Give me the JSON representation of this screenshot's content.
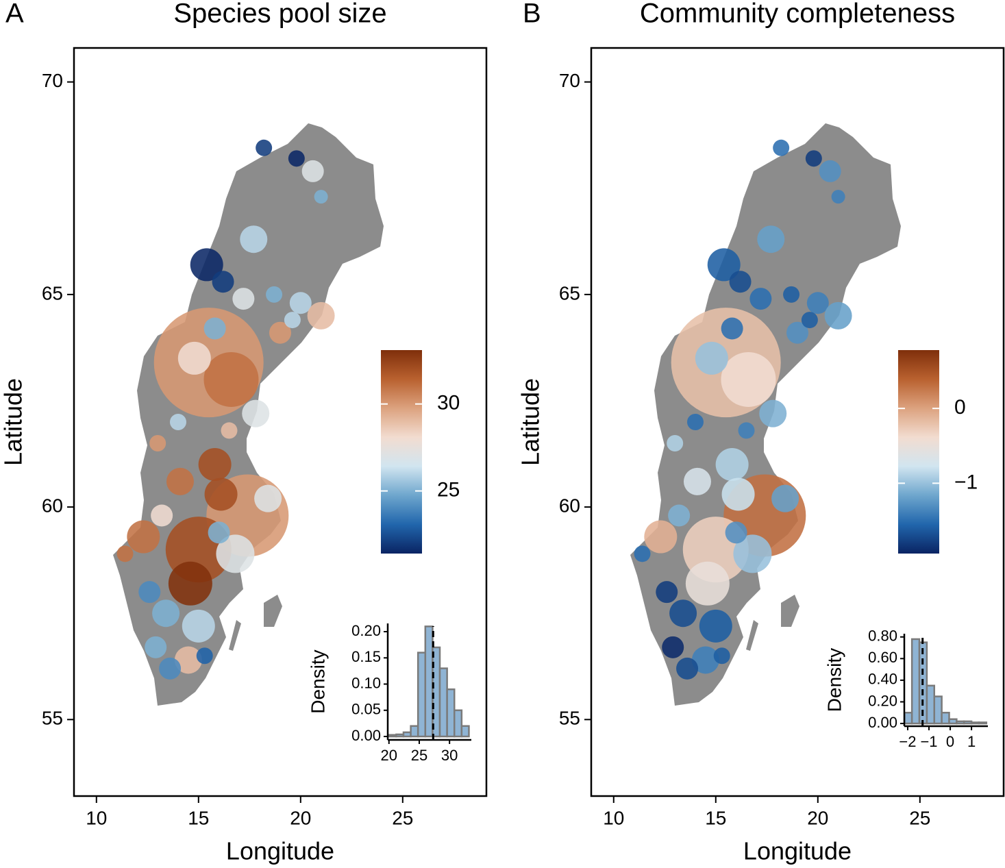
{
  "chart_data": [
    {
      "type": "scatter",
      "panel_label": "A",
      "title": "Species pool size",
      "x_label": "Longitude",
      "y_label": "Latitude",
      "xlim": [
        8.9,
        29.1
      ],
      "ylim": [
        53.2,
        70.8
      ],
      "xticks": [
        10,
        15,
        20,
        25
      ],
      "yticks": [
        55,
        60,
        65,
        70
      ],
      "map_color": "#8c8c8c",
      "x": [
        15.5,
        17.4,
        15.0,
        16.6,
        18.2,
        19.8,
        20.6,
        21.0,
        17.7,
        15.4,
        16.2,
        17.2,
        18.7,
        20.0,
        21.0,
        19.0,
        14.8,
        17.8,
        14.0,
        15.8,
        14.1,
        16.1,
        18.4,
        12.3,
        16.8,
        11.4,
        14.6,
        12.6,
        13.4,
        15.0,
        12.9,
        14.5,
        13.6,
        15.3,
        16.0,
        13.2,
        16.5,
        15.8,
        19.6,
        13.0
      ],
      "y": [
        63.4,
        59.8,
        59.0,
        63.0,
        68.45,
        68.2,
        67.9,
        67.3,
        66.3,
        65.7,
        65.3,
        64.9,
        65.0,
        64.8,
        64.5,
        64.1,
        63.5,
        62.2,
        62.0,
        61.0,
        60.6,
        60.3,
        60.2,
        59.3,
        58.9,
        58.9,
        58.2,
        58.0,
        57.5,
        57.2,
        56.7,
        56.4,
        56.2,
        56.5,
        59.4,
        59.8,
        61.8,
        64.2,
        64.4,
        61.5
      ],
      "sizes": [
        20,
        15,
        12,
        10,
        3,
        3,
        4,
        2.5,
        5,
        6,
        4,
        4,
        3,
        4,
        5,
        4,
        6,
        5,
        3,
        6,
        5,
        6,
        5,
        6,
        7,
        3,
        8,
        4,
        5,
        6,
        4,
        5,
        4,
        3,
        4,
        4,
        3,
        4,
        3,
        3
      ],
      "color_values": [
        30,
        30,
        32,
        31,
        22,
        21.5,
        27,
        25,
        26,
        21.5,
        22,
        27,
        25,
        26,
        29,
        30,
        28,
        27,
        26,
        32,
        31,
        32,
        27,
        31,
        27,
        31,
        33,
        24,
        25,
        26,
        25,
        29,
        24,
        23,
        25,
        28,
        29,
        25,
        26,
        30
      ],
      "colorbar": {
        "lim": [
          21.4,
          33.1
        ],
        "ticks": [
          25,
          30
        ],
        "colors": [
          "#0a2463",
          "#2166ac",
          "#6ea6cd",
          "#d1e5f0",
          "#f2dcd0",
          "#dca27f",
          "#b9612f",
          "#7f2f0b"
        ]
      },
      "inset": {
        "type": "histogram",
        "y_label": "Density",
        "color": "#8fb4d4",
        "bins": [
          20,
          21.2,
          22.4,
          23.6,
          24.8,
          26,
          27.2,
          28.4,
          29.6,
          30.8,
          32,
          33.2
        ],
        "counts": [
          0.003,
          0.004,
          0.008,
          0.02,
          0.16,
          0.21,
          0.17,
          0.13,
          0.09,
          0.05,
          0.02
        ],
        "xlim": [
          19.8,
          33.6
        ],
        "ylim": [
          -0.0065,
          0.2157
        ],
        "xticks": [
          20,
          25,
          30
        ],
        "yticks": [
          {
            "value": 0,
            "label": "0.00"
          },
          {
            "value": 0.05,
            "label": "0.05"
          },
          {
            "value": 0.1,
            "label": "0.10"
          },
          {
            "value": 0.15,
            "label": "0.15"
          },
          {
            "value": 0.2,
            "label": "0.20"
          }
        ],
        "mean_line": 27.3
      }
    },
    {
      "type": "scatter",
      "panel_label": "B",
      "title": "Community completeness",
      "x_label": "Longitude",
      "y_label": "Latitude",
      "xlim": [
        8.9,
        29.1
      ],
      "ylim": [
        53.2,
        70.8
      ],
      "xticks": [
        10,
        15,
        20,
        25
      ],
      "yticks": [
        55,
        60,
        65,
        70
      ],
      "map_color": "#8c8c8c",
      "x": [
        15.5,
        17.4,
        15.0,
        16.6,
        18.2,
        19.8,
        20.6,
        21.0,
        17.7,
        15.4,
        16.2,
        17.2,
        18.7,
        20.0,
        21.0,
        19.0,
        14.8,
        17.8,
        14.0,
        15.8,
        14.1,
        16.1,
        18.4,
        12.3,
        16.8,
        11.4,
        14.6,
        12.6,
        13.4,
        15.0,
        12.9,
        14.5,
        13.6,
        15.3,
        16.0,
        13.2,
        16.5,
        15.8,
        19.6,
        13.0
      ],
      "y": [
        63.4,
        59.8,
        59.0,
        63.0,
        68.45,
        68.2,
        67.9,
        67.3,
        66.3,
        65.7,
        65.3,
        64.9,
        65.0,
        64.8,
        64.5,
        64.1,
        63.5,
        62.2,
        62.0,
        61.0,
        60.6,
        60.3,
        60.2,
        59.3,
        58.9,
        58.9,
        58.2,
        58.0,
        57.5,
        57.2,
        56.7,
        56.4,
        56.2,
        56.5,
        59.4,
        59.8,
        61.8,
        64.2,
        64.4,
        61.5
      ],
      "sizes": [
        20,
        15,
        12,
        10,
        3,
        3,
        4,
        2.5,
        5,
        6,
        4,
        4,
        3,
        4,
        5,
        4,
        6,
        5,
        3,
        6,
        5,
        6,
        5,
        6,
        7,
        3,
        8,
        4,
        5,
        6,
        4,
        5,
        4,
        3,
        4,
        4,
        3,
        4,
        3,
        3
      ],
      "color_values": [
        -0.2,
        0.3,
        -0.3,
        -0.4,
        -1.5,
        -1.8,
        -1.3,
        -1.4,
        -1.2,
        -1.6,
        -1.7,
        -1.5,
        -1.6,
        -1.4,
        -1.2,
        -1.3,
        -1.0,
        -1.1,
        -1.5,
        -0.9,
        -0.7,
        -0.8,
        -1.2,
        -0.1,
        -1.0,
        -1.5,
        -0.5,
        -1.8,
        -1.7,
        -1.6,
        -1.9,
        -1.4,
        -1.7,
        -1.6,
        -1.3,
        -1.1,
        -1.4,
        -1.5,
        -1.6,
        -0.9
      ],
      "colorbar": {
        "lim": [
          -1.94,
          0.78
        ],
        "ticks": [
          {
            "value": -1,
            "label": "−1"
          },
          0
        ],
        "colors": [
          "#0a2463",
          "#2166ac",
          "#6ea6cd",
          "#d1e5f0",
          "#f2dcd0",
          "#dca27f",
          "#b9612f",
          "#7f2f0b"
        ]
      },
      "inset": {
        "type": "histogram",
        "y_label": "Density",
        "color": "#8fb4d4",
        "bins": [
          -2.15,
          -1.8,
          -1.45,
          -1.1,
          -0.75,
          -0.4,
          -0.05,
          0.3,
          0.65,
          1.0,
          1.35,
          1.7
        ],
        "counts": [
          0.1,
          0.78,
          0.75,
          0.35,
          0.25,
          0.1,
          0.04,
          0.02,
          0.02,
          0.01,
          0.01
        ],
        "xlim": [
          -2.16,
          1.77
        ],
        "ylim": [
          -0.025,
          0.83
        ],
        "xticks": [
          {
            "value": -2,
            "label": "−2"
          },
          {
            "value": -1,
            "label": "−1"
          },
          0,
          1
        ],
        "yticks": [
          {
            "value": 0,
            "label": "0.00"
          },
          {
            "value": 0.2,
            "label": "0.20"
          },
          {
            "value": 0.4,
            "label": "0.40"
          },
          {
            "value": 0.6,
            "label": "0.60"
          },
          {
            "value": 0.8,
            "label": "0.80"
          }
        ],
        "mean_line": -1.3
      }
    }
  ]
}
